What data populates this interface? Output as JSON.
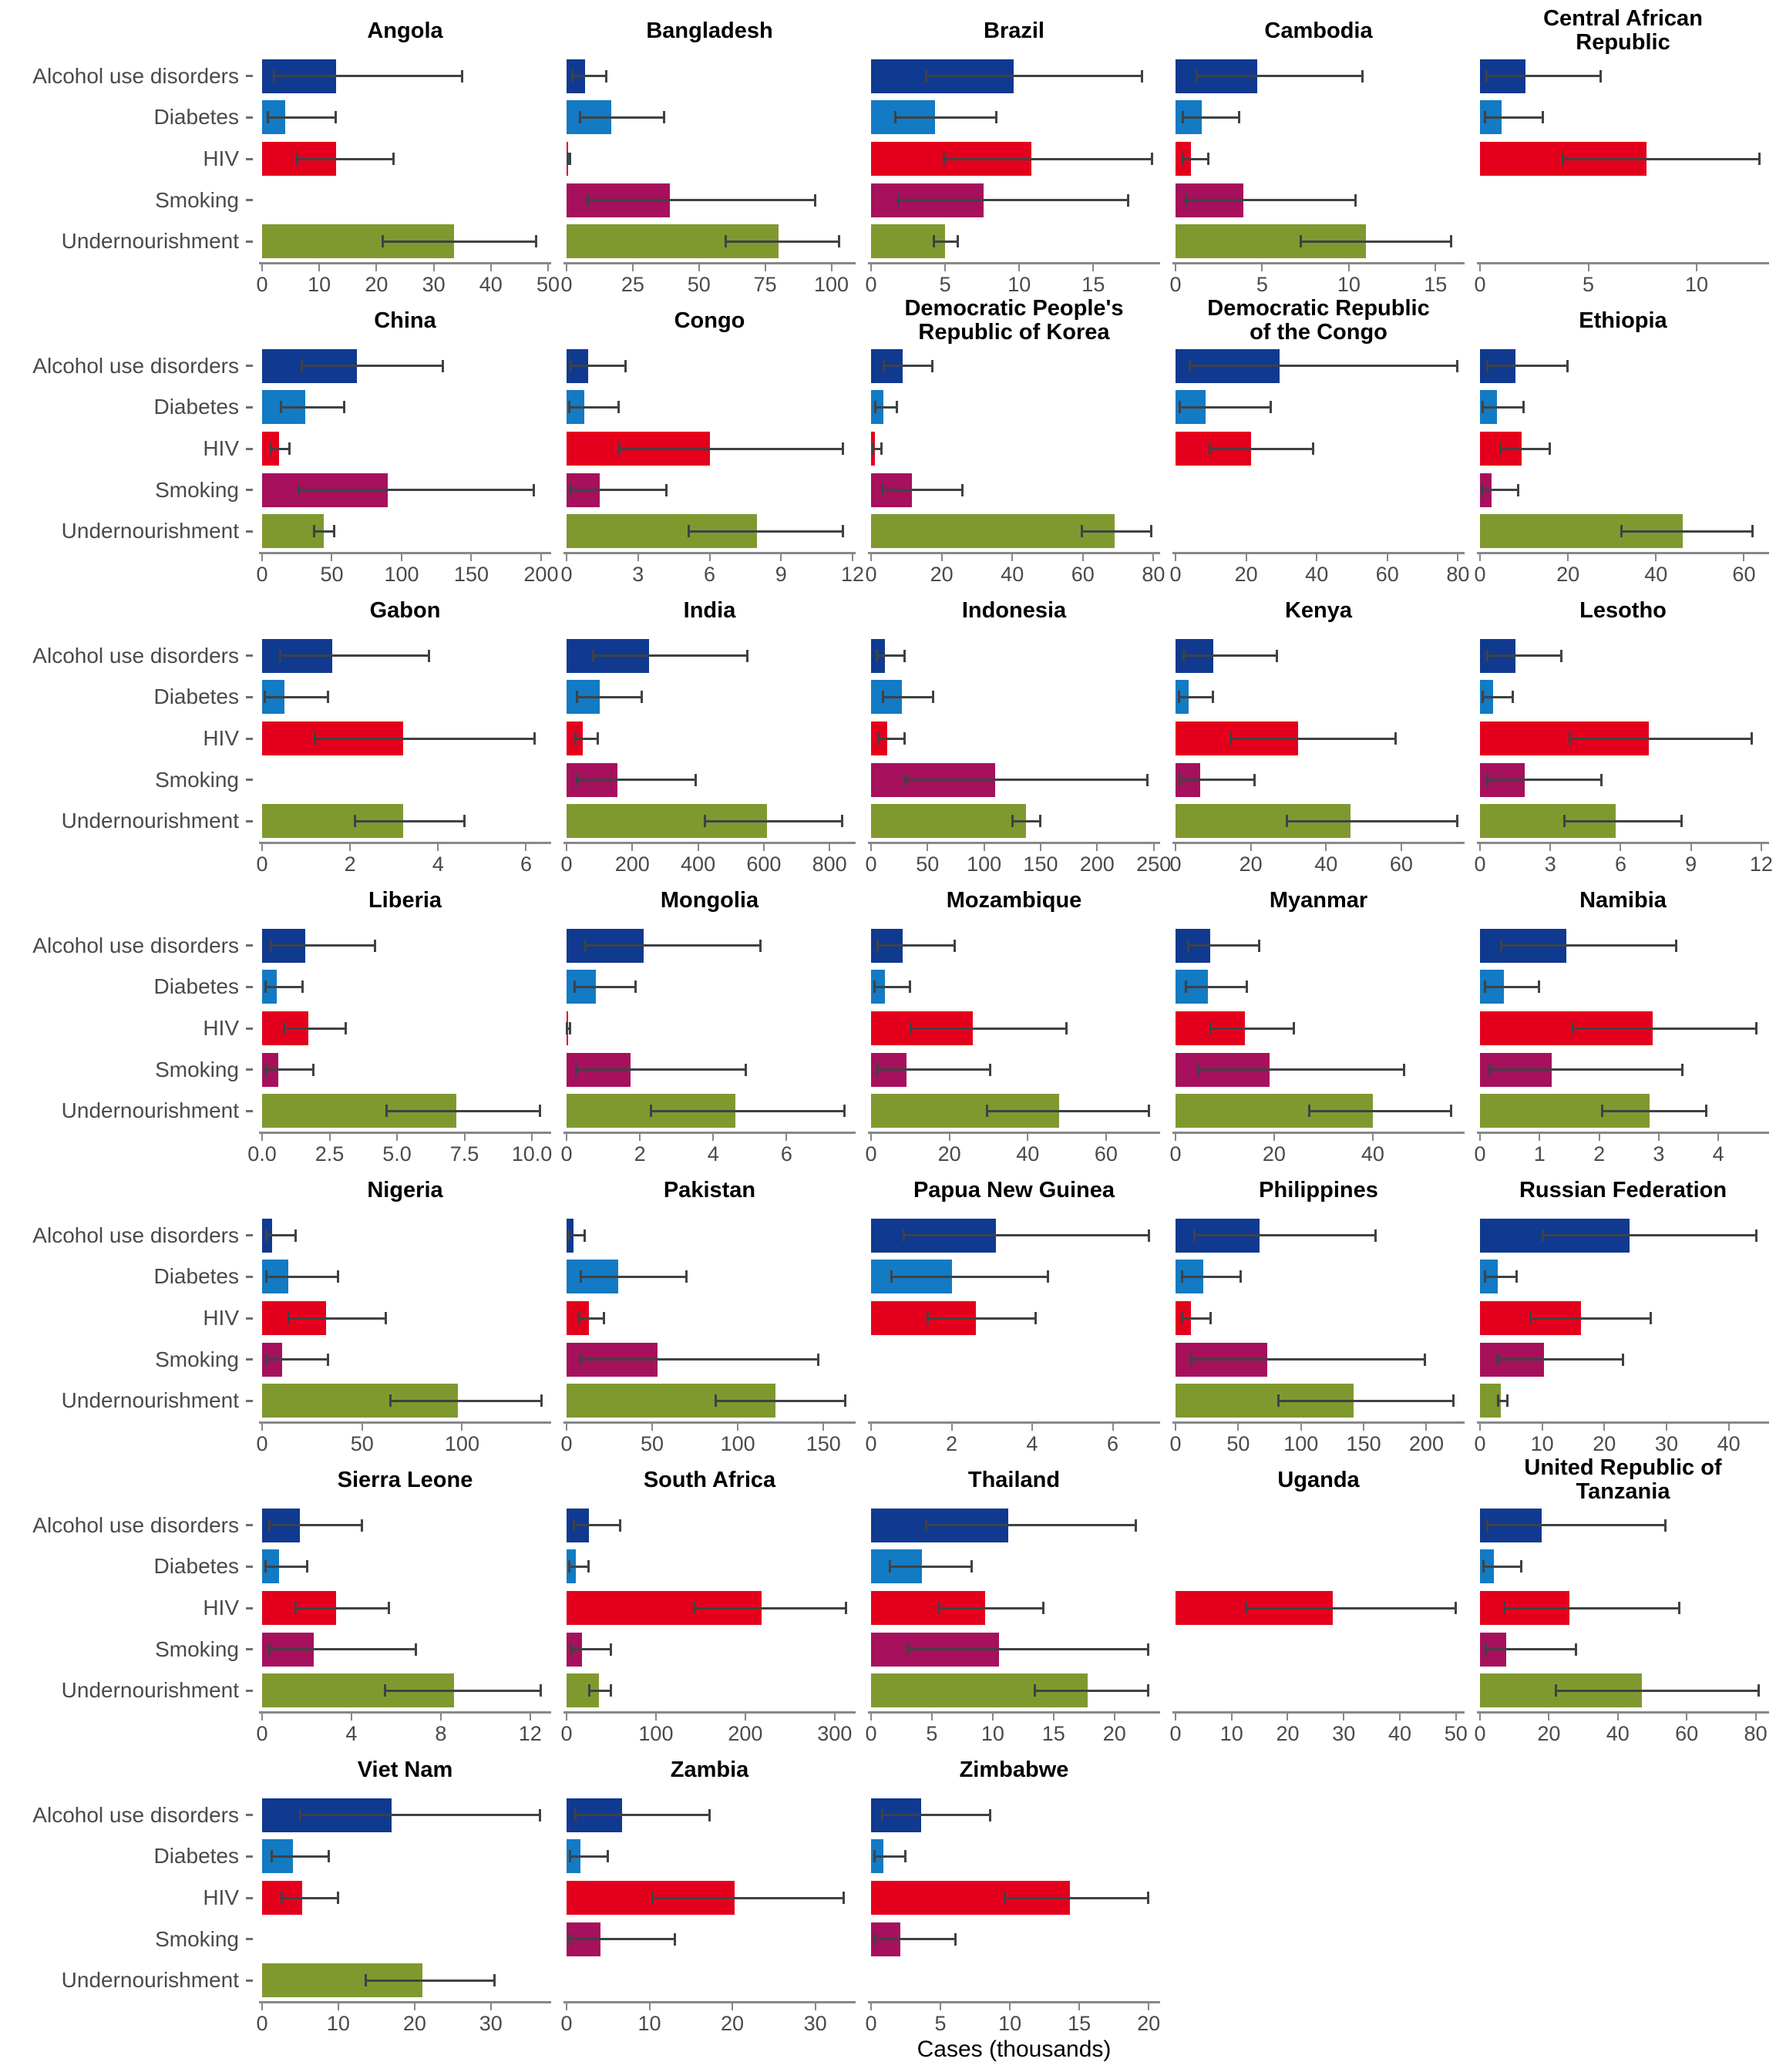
{
  "chart_data": {
    "type": "bar",
    "orientation": "horizontal",
    "title": "",
    "xlabel": "Cases (thousands)",
    "grid": false,
    "legend": "none",
    "categories": [
      "Alcohol use disorders",
      "Diabetes",
      "HIV",
      "Smoking",
      "Undernourishment"
    ],
    "colors": {
      "alcohol_use_disorders": "#103990",
      "diabetes": "#137AC4",
      "hiv": "#E4001C",
      "smoking": "#A6105C",
      "undernourishment": "#7F992F",
      "error_bar": "#3f4245",
      "axis_line": "#888888",
      "axis_text": "#4a4a4a"
    },
    "error_bars": true,
    "panels": [
      {
        "name": "Angola",
        "xmax": 50,
        "tick_values": [
          0,
          10,
          20,
          30,
          40,
          50
        ],
        "tick_labels": [
          "0",
          "10",
          "20",
          "30",
          "40",
          "50"
        ],
        "values": [
          13,
          4,
          13,
          null,
          33.5
        ],
        "ci_low": [
          2,
          1,
          6,
          null,
          21
        ],
        "ci_high": [
          35,
          13,
          23,
          null,
          48
        ]
      },
      {
        "name": "Bangladesh",
        "xmax": 108,
        "tick_values": [
          0,
          25,
          50,
          75,
          100
        ],
        "tick_labels": [
          "0",
          "25",
          "50",
          "75",
          "100"
        ],
        "values": [
          7,
          17,
          0.6,
          39,
          80
        ],
        "ci_low": [
          2,
          5,
          0.2,
          8,
          60
        ],
        "ci_high": [
          15,
          37,
          1.5,
          94,
          103
        ]
      },
      {
        "name": "Brazil",
        "xmax": 19.3,
        "tick_values": [
          0,
          5,
          10,
          15
        ],
        "tick_labels": [
          "0",
          "5",
          "10",
          "15"
        ],
        "values": [
          9.6,
          4.3,
          10.8,
          7.6,
          5.0
        ],
        "ci_low": [
          3.7,
          1.6,
          4.9,
          1.8,
          4.2
        ],
        "ci_high": [
          18.3,
          8.5,
          19.0,
          17.4,
          5.9
        ]
      },
      {
        "name": "Cambodia",
        "xmax": 16.5,
        "tick_values": [
          0,
          5,
          10,
          15
        ],
        "tick_labels": [
          "0",
          "5",
          "10",
          "15"
        ],
        "values": [
          4.7,
          1.5,
          0.9,
          3.9,
          11
        ],
        "ci_low": [
          1.2,
          0.4,
          0.4,
          0.6,
          7.2
        ],
        "ci_high": [
          10.8,
          3.7,
          1.9,
          10.4,
          15.9
        ]
      },
      {
        "name": "Central African\nRepublic",
        "xmax": 13.2,
        "tick_values": [
          0,
          5,
          10
        ],
        "tick_labels": [
          "0",
          "5",
          "10"
        ],
        "values": [
          2.1,
          1.0,
          7.7,
          null,
          null
        ],
        "ci_low": [
          0.3,
          0.2,
          3.8,
          null,
          null
        ],
        "ci_high": [
          5.6,
          2.9,
          12.9,
          null,
          null
        ]
      },
      {
        "name": "China",
        "xmax": 205,
        "tick_values": [
          0,
          50,
          100,
          150,
          200
        ],
        "tick_labels": [
          "0",
          "50",
          "100",
          "150",
          "200"
        ],
        "values": [
          68,
          31,
          12,
          90,
          44
        ],
        "ci_low": [
          28,
          13,
          6,
          26,
          37
        ],
        "ci_high": [
          130,
          59,
          20,
          195,
          52
        ]
      },
      {
        "name": "Congo",
        "xmax": 12,
        "tick_values": [
          0,
          3,
          6,
          9,
          12
        ],
        "tick_labels": [
          "0",
          "3",
          "6",
          "9",
          "12"
        ],
        "values": [
          0.9,
          0.75,
          6.0,
          1.4,
          8.0
        ],
        "ci_low": [
          0.15,
          0.1,
          2.2,
          0.15,
          5.1
        ],
        "ci_high": [
          2.5,
          2.2,
          11.6,
          4.2,
          11.6
        ]
      },
      {
        "name": "Democratic People's\nRepublic of Korea",
        "xmax": 81,
        "tick_values": [
          0,
          20,
          40,
          60,
          80
        ],
        "tick_labels": [
          "0",
          "20",
          "40",
          "60",
          "80"
        ],
        "values": [
          9,
          3.5,
          1,
          11.5,
          69
        ],
        "ci_low": [
          3.5,
          1,
          0.3,
          3,
          59.5
        ],
        "ci_high": [
          17.5,
          7.5,
          3,
          26,
          79.5
        ]
      },
      {
        "name": "Democratic Republic\nof the Congo",
        "xmax": 81,
        "tick_values": [
          0,
          20,
          40,
          60,
          80
        ],
        "tick_labels": [
          "0",
          "20",
          "40",
          "60",
          "80"
        ],
        "values": [
          29.5,
          8.5,
          21.5,
          null,
          null
        ],
        "ci_low": [
          4,
          1,
          9.5,
          null,
          null
        ],
        "ci_high": [
          80,
          27,
          39,
          null,
          null
        ]
      },
      {
        "name": "Ethiopia",
        "xmax": 65,
        "tick_values": [
          0,
          20,
          40,
          60
        ],
        "tick_labels": [
          "0",
          "20",
          "40",
          "60"
        ],
        "values": [
          8,
          3.8,
          9.5,
          2.7,
          46
        ],
        "ci_low": [
          1.5,
          0.5,
          4.5,
          0.3,
          32
        ],
        "ci_high": [
          20,
          10,
          16,
          8.7,
          62
        ]
      },
      {
        "name": "Gabon",
        "xmax": 6.5,
        "tick_values": [
          0,
          2,
          4,
          6
        ],
        "tick_labels": [
          "0",
          "2",
          "4",
          "6"
        ],
        "values": [
          1.6,
          0.5,
          3.2,
          null,
          3.2
        ],
        "ci_low": [
          0.4,
          0.05,
          1.2,
          null,
          2.1
        ],
        "ci_high": [
          3.8,
          1.5,
          6.2,
          null,
          4.6
        ]
      },
      {
        "name": "India",
        "xmax": 870,
        "tick_values": [
          0,
          200,
          400,
          600,
          800
        ],
        "tick_labels": [
          "0",
          "200",
          "400",
          "600",
          "800"
        ],
        "values": [
          250,
          100,
          50,
          155,
          610
        ],
        "ci_low": [
          80,
          30,
          25,
          30,
          420
        ],
        "ci_high": [
          550,
          230,
          95,
          395,
          840
        ]
      },
      {
        "name": "Indonesia",
        "xmax": 253,
        "tick_values": [
          0,
          50,
          100,
          150,
          200,
          250
        ],
        "tick_labels": [
          "0",
          "50",
          "100",
          "150",
          "200",
          "250"
        ],
        "values": [
          12,
          27,
          14,
          110,
          137
        ],
        "ci_low": [
          5,
          10,
          7,
          30,
          125
        ],
        "ci_high": [
          30,
          55,
          30,
          245,
          150
        ]
      },
      {
        "name": "Kenya",
        "xmax": 76,
        "tick_values": [
          0,
          20,
          40,
          60
        ],
        "tick_labels": [
          "0",
          "20",
          "40",
          "60"
        ],
        "values": [
          10,
          3.5,
          32.5,
          6.5,
          46.5
        ],
        "ci_low": [
          2,
          0.8,
          14.5,
          1,
          29.5
        ],
        "ci_high": [
          27,
          10,
          58.5,
          21,
          75
        ]
      },
      {
        "name": "Lesotho",
        "xmax": 12.2,
        "tick_values": [
          0,
          3,
          6,
          9,
          12
        ],
        "tick_labels": [
          "0",
          "3",
          "6",
          "9",
          "12"
        ],
        "values": [
          1.5,
          0.55,
          7.2,
          1.9,
          5.8
        ],
        "ci_low": [
          0.3,
          0.1,
          3.8,
          0.3,
          3.6
        ],
        "ci_high": [
          3.5,
          1.4,
          11.6,
          5.2,
          8.6
        ]
      },
      {
        "name": "Liberia",
        "xmax": 10.6,
        "tick_values": [
          0,
          2.5,
          5,
          7.5,
          10
        ],
        "tick_labels": [
          "0.0",
          "2.5",
          "5.0",
          "7.5",
          "10.0"
        ],
        "values": [
          1.6,
          0.55,
          1.7,
          0.6,
          7.2
        ],
        "ci_low": [
          0.3,
          0.1,
          0.8,
          0.1,
          4.6
        ],
        "ci_high": [
          4.2,
          1.5,
          3.1,
          1.9,
          10.3
        ]
      },
      {
        "name": "Mongolia",
        "xmax": 7.8,
        "tick_values": [
          0,
          2,
          4,
          6
        ],
        "tick_labels": [
          "0",
          "2",
          "4",
          "6"
        ],
        "values": [
          2.1,
          0.8,
          0.03,
          1.75,
          4.6
        ],
        "ci_low": [
          0.5,
          0.2,
          0.01,
          0.25,
          2.3
        ],
        "ci_high": [
          5.3,
          1.9,
          0.1,
          4.9,
          7.6
        ]
      },
      {
        "name": "Mozambique",
        "xmax": 73,
        "tick_values": [
          0,
          20,
          40,
          60
        ],
        "tick_labels": [
          "0",
          "20",
          "40",
          "60"
        ],
        "values": [
          8,
          3.5,
          26,
          9,
          48
        ],
        "ci_low": [
          1.5,
          0.8,
          10,
          1.5,
          29.5
        ],
        "ci_high": [
          21.5,
          10,
          50,
          30.5,
          71
        ]
      },
      {
        "name": "Myanmar",
        "xmax": 58,
        "tick_values": [
          0,
          20,
          40
        ],
        "tick_labels": [
          "0",
          "20",
          "40"
        ],
        "values": [
          7,
          6.5,
          14,
          19,
          40
        ],
        "ci_low": [
          2.5,
          2,
          7,
          4.5,
          27
        ],
        "ci_high": [
          17,
          14.5,
          24,
          46.5,
          56
        ]
      },
      {
        "name": "Namibia",
        "xmax": 4.8,
        "tick_values": [
          0,
          1,
          2,
          3,
          4
        ],
        "tick_labels": [
          "0",
          "1",
          "2",
          "3",
          "4"
        ],
        "values": [
          1.45,
          0.4,
          2.9,
          1.2,
          2.85
        ],
        "ci_low": [
          0.35,
          0.08,
          1.55,
          0.15,
          2.05
        ],
        "ci_high": [
          3.3,
          1.0,
          4.65,
          3.4,
          3.8
        ]
      },
      {
        "name": "Nigeria",
        "xmax": 143,
        "tick_values": [
          0,
          50,
          100
        ],
        "tick_labels": [
          "0",
          "50",
          "100"
        ],
        "values": [
          5,
          13,
          32,
          10,
          98
        ],
        "ci_low": [
          2,
          2,
          13,
          2,
          64
        ],
        "ci_high": [
          17,
          38,
          62,
          33,
          140
        ]
      },
      {
        "name": "Pakistan",
        "xmax": 167,
        "tick_values": [
          0,
          50,
          100,
          150
        ],
        "tick_labels": [
          "0",
          "50",
          "100",
          "150"
        ],
        "values": [
          4,
          30,
          13,
          53,
          122
        ],
        "ci_low": [
          1,
          8,
          7,
          8,
          87
        ],
        "ci_high": [
          11,
          70,
          22,
          147,
          163
        ]
      },
      {
        "name": "Papua New Guinea",
        "xmax": 7.1,
        "tick_values": [
          0,
          2,
          4,
          6
        ],
        "tick_labels": [
          "0",
          "2",
          "4",
          "6"
        ],
        "values": [
          3.1,
          2.0,
          2.6,
          null,
          null
        ],
        "ci_low": [
          0.8,
          0.5,
          1.4,
          null,
          null
        ],
        "ci_high": [
          6.9,
          4.4,
          4.1,
          null,
          null
        ]
      },
      {
        "name": "Philippines",
        "xmax": 228,
        "tick_values": [
          0,
          50,
          100,
          150,
          200
        ],
        "tick_labels": [
          "0",
          "50",
          "100",
          "150",
          "200"
        ],
        "values": [
          67,
          22,
          12,
          73,
          142
        ],
        "ci_low": [
          15,
          5,
          5,
          12,
          82
        ],
        "ci_high": [
          160,
          52,
          28,
          199,
          222
        ]
      },
      {
        "name": "Russian Federation",
        "xmax": 46,
        "tick_values": [
          0,
          10,
          20,
          30,
          40
        ],
        "tick_labels": [
          "0",
          "10",
          "20",
          "30",
          "40"
        ],
        "values": [
          24,
          2.8,
          16.3,
          10.3,
          3.4
        ],
        "ci_low": [
          10,
          0.8,
          8,
          2.7,
          2.8
        ],
        "ci_high": [
          44.5,
          6,
          27.5,
          23,
          4.5
        ]
      },
      {
        "name": "Sierra Leone",
        "xmax": 12.8,
        "tick_values": [
          0,
          4,
          8,
          12
        ],
        "tick_labels": [
          "0",
          "4",
          "8",
          "12"
        ],
        "values": [
          1.7,
          0.75,
          3.3,
          2.3,
          8.6
        ],
        "ci_low": [
          0.3,
          0.15,
          1.5,
          0.3,
          5.5
        ],
        "ci_high": [
          4.5,
          2.05,
          5.7,
          6.9,
          12.5
        ]
      },
      {
        "name": "South Africa",
        "xmax": 320,
        "tick_values": [
          0,
          100,
          200,
          300
        ],
        "tick_labels": [
          "0",
          "100",
          "200",
          "300"
        ],
        "values": [
          25,
          10,
          218,
          17,
          36
        ],
        "ci_low": [
          8,
          3,
          142,
          5,
          25
        ],
        "ci_high": [
          60,
          25,
          313,
          50,
          50
        ]
      },
      {
        "name": "Thailand",
        "xmax": 23.5,
        "tick_values": [
          0,
          5,
          10,
          15,
          20
        ],
        "tick_labels": [
          "0",
          "5",
          "10",
          "15",
          "20"
        ],
        "values": [
          11.3,
          4.2,
          9.4,
          10.5,
          17.8
        ],
        "ci_low": [
          4.5,
          1.5,
          5.6,
          3,
          13.4
        ],
        "ci_high": [
          21.8,
          8.3,
          14.2,
          22.8,
          22.8
        ]
      },
      {
        "name": "Uganda",
        "xmax": 51,
        "tick_values": [
          0,
          10,
          20,
          30,
          40,
          50
        ],
        "tick_labels": [
          "0",
          "10",
          "20",
          "30",
          "40",
          "50"
        ],
        "values": [
          null,
          null,
          28,
          null,
          null
        ],
        "ci_low": [
          null,
          null,
          12.5,
          null,
          null
        ],
        "ci_high": [
          null,
          null,
          50,
          null,
          null
        ]
      },
      {
        "name": "United Republic of\nTanzania",
        "xmax": 83,
        "tick_values": [
          0,
          20,
          40,
          60,
          80
        ],
        "tick_labels": [
          "0",
          "20",
          "40",
          "60",
          "80"
        ],
        "values": [
          18,
          4,
          26,
          7.5,
          47
        ],
        "ci_low": [
          2,
          1,
          7,
          1.5,
          22
        ],
        "ci_high": [
          54,
          12,
          58,
          28,
          81
        ]
      },
      {
        "name": "Viet Nam",
        "xmax": 37.5,
        "tick_values": [
          0,
          10,
          20,
          30
        ],
        "tick_labels": [
          "0",
          "10",
          "20",
          "30"
        ],
        "values": [
          17,
          4,
          5.3,
          null,
          21
        ],
        "ci_low": [
          5,
          1.2,
          2.5,
          null,
          13.5
        ],
        "ci_high": [
          36.5,
          8.8,
          10,
          null,
          30.5
        ]
      },
      {
        "name": "Zambia",
        "xmax": 34.5,
        "tick_values": [
          0,
          10,
          20,
          30
        ],
        "tick_labels": [
          "0",
          "10",
          "20",
          "30"
        ],
        "values": [
          6.7,
          1.7,
          20.3,
          4.1,
          null
        ],
        "ci_low": [
          1,
          0.4,
          10.3,
          0.3,
          null
        ],
        "ci_high": [
          17.3,
          5,
          33.5,
          13.1,
          null
        ]
      },
      {
        "name": "Zimbabwe",
        "xmax": 20.6,
        "tick_values": [
          0,
          5,
          10,
          15,
          20
        ],
        "tick_labels": [
          "0",
          "5",
          "10",
          "15",
          "20"
        ],
        "values": [
          3.6,
          0.9,
          14.3,
          2.1,
          null
        ],
        "ci_low": [
          0.8,
          0.2,
          9.6,
          0.2,
          null
        ],
        "ci_high": [
          8.6,
          2.5,
          20,
          6.1,
          null
        ]
      }
    ]
  }
}
